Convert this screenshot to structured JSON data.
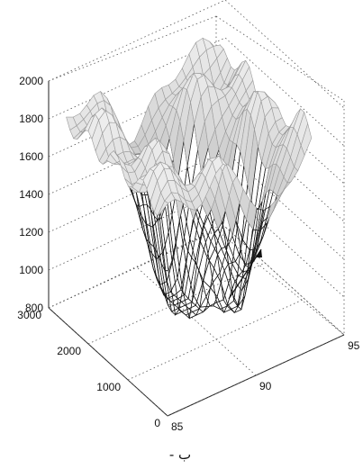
{
  "figure": {
    "caption": "ب -"
  },
  "chart_data": {
    "type": "surface3d",
    "title": "",
    "xlabel": "",
    "ylabel": "",
    "zlabel": "",
    "x_axis": {
      "ticks": [
        "85",
        "90",
        "95"
      ],
      "range": [
        85,
        95
      ]
    },
    "y_axis": {
      "ticks": [
        "0",
        "1000",
        "2000",
        "3000"
      ],
      "range": [
        0,
        3000
      ]
    },
    "z_axis": {
      "ticks": [
        "800",
        "1000",
        "1200",
        "1400",
        "1600",
        "1800",
        "2000"
      ],
      "range": [
        800,
        2000
      ]
    },
    "grid": true,
    "annotations": [
      {
        "type": "arrow",
        "points_to": "surface minimum near x=90, y=2000",
        "text": ""
      }
    ],
    "surface_summary": {
      "plateau_z": 1750,
      "trough_minima": [
        {
          "x": 89.5,
          "y": 2200,
          "z": 1050
        },
        {
          "x": 90.5,
          "y": 1800,
          "z": 950
        },
        {
          "x": 92,
          "y": 1300,
          "z": 900
        }
      ]
    },
    "colormap": "gray"
  }
}
